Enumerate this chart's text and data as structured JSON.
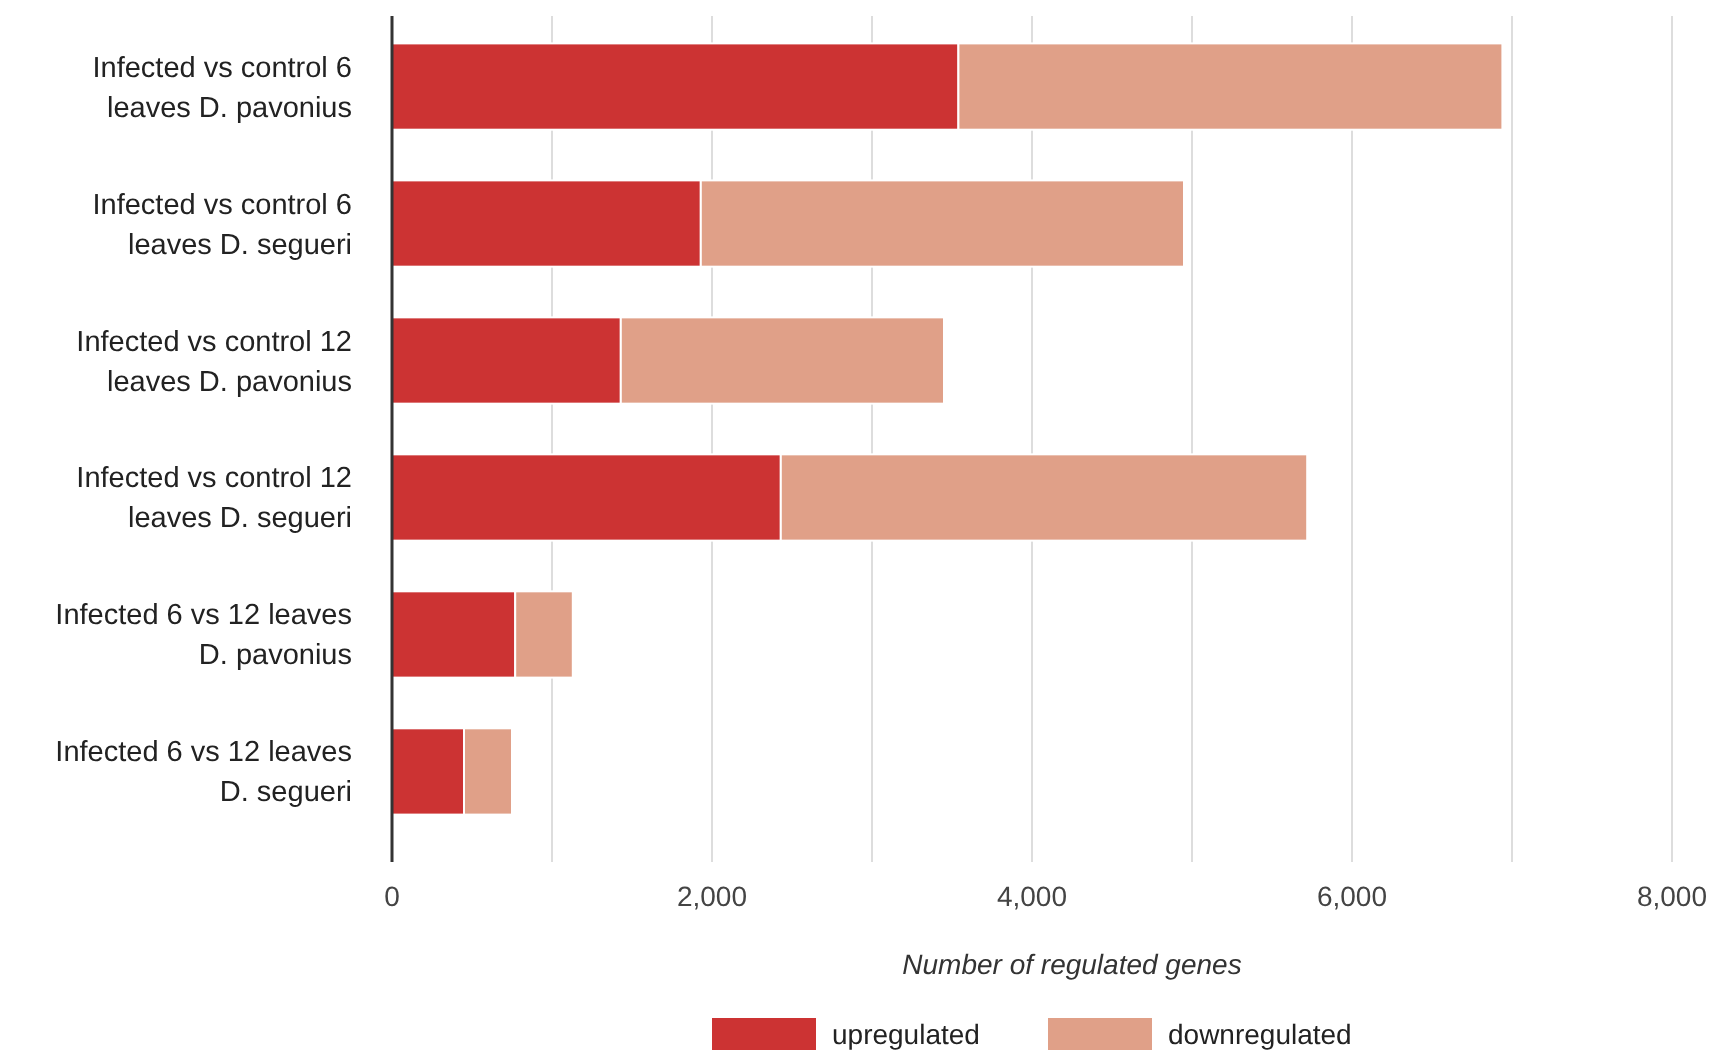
{
  "chart_data": {
    "type": "bar",
    "orientation": "horizontal",
    "stacked": true,
    "categories": [
      "Infected vs control 6 leaves D. pavonius",
      "Infected vs control 6 leaves D. segueri",
      "Infected vs control 12 leaves D. pavonius",
      "Infected vs control 12 leaves D. segueri",
      "Infected 6 vs 12 leaves D. pavonius",
      "Infected 6 vs 12 leaves D. segueri"
    ],
    "series": [
      {
        "name": "upregulated",
        "color": "#cc3333",
        "values": [
          3540,
          1930,
          1430,
          2430,
          770,
          450
        ]
      },
      {
        "name": "downregulated",
        "color": "#e0a088",
        "values": [
          3400,
          3020,
          2020,
          3290,
          360,
          300
        ]
      }
    ],
    "xlabel": "Number of regulated genes",
    "xlim": [
      0,
      8000
    ],
    "xticks": [
      0,
      {
        "value": 1000,
        "label": null
      },
      {
        "value": 2000,
        "label": "2,000"
      },
      {
        "value": 3000,
        "label": null
      },
      {
        "value": 4000,
        "label": "4,000"
      },
      {
        "value": 5000,
        "label": null
      },
      {
        "value": 6000,
        "label": "6,000"
      },
      {
        "value": 7000,
        "label": null
      },
      {
        "value": 8000,
        "label": "8,000"
      }
    ],
    "grid": "x",
    "legend": "bottom"
  }
}
